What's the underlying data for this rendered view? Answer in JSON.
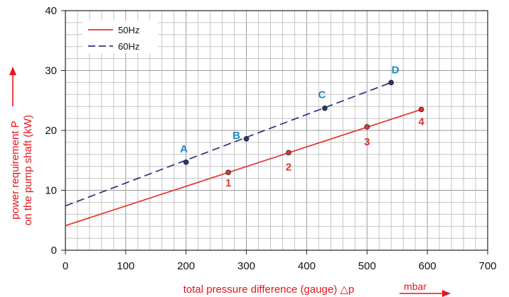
{
  "chart_data": {
    "type": "line",
    "xlabel": "total pressure difference (gauge) △p",
    "xunit": "mbar",
    "ylabel_line1": "power requirement P",
    "ylabel_line2": "on the pump shaft (kW)",
    "xlim": [
      0,
      700
    ],
    "ylim": [
      0,
      40
    ],
    "x_ticks": [
      0,
      100,
      200,
      300,
      400,
      500,
      600,
      700
    ],
    "y_ticks": [
      0,
      10,
      20,
      30,
      40
    ],
    "grid": true,
    "legend_position": "top-left",
    "series": [
      {
        "name": "50Hz",
        "style": "solid",
        "color": "#e8322b",
        "line_start": [
          0,
          4.1
        ],
        "line_end": [
          590,
          23.5
        ],
        "points": [
          {
            "label": "1",
            "x": 270,
            "y": 13.0
          },
          {
            "label": "2",
            "x": 370,
            "y": 16.3
          },
          {
            "label": "3",
            "x": 500,
            "y": 20.6
          },
          {
            "label": "4",
            "x": 590,
            "y": 23.5
          }
        ]
      },
      {
        "name": "60Hz",
        "style": "dashed",
        "color": "#2b3577",
        "line_start": [
          0,
          7.4
        ],
        "line_end": [
          540,
          28.0
        ],
        "points": [
          {
            "label": "A",
            "x": 200,
            "y": 14.7
          },
          {
            "label": "B",
            "x": 300,
            "y": 18.6
          },
          {
            "label": "C",
            "x": 430,
            "y": 23.7
          },
          {
            "label": "D",
            "x": 540,
            "y": 28.0
          }
        ]
      }
    ],
    "point_label_colors": {
      "50Hz": "#d9342b",
      "60Hz": "#1b88c6"
    },
    "axis_label_color": "#e8141b"
  }
}
